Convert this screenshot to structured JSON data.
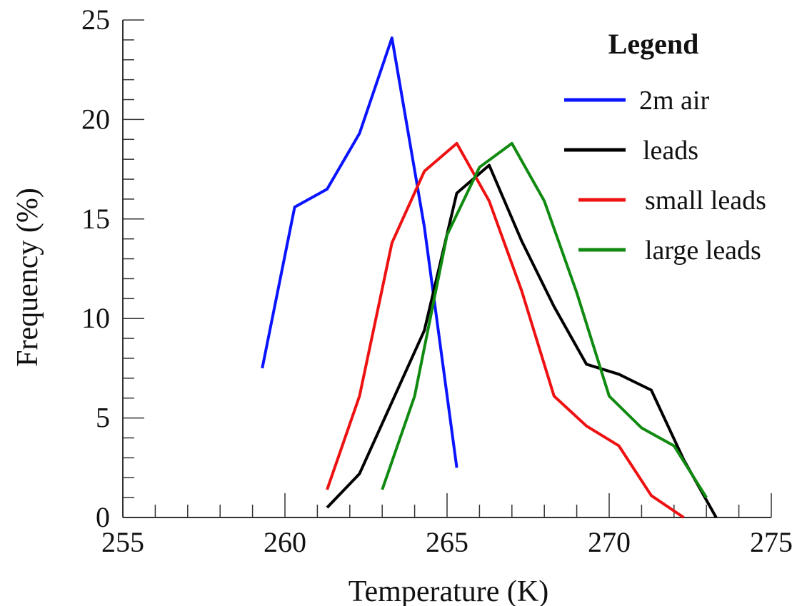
{
  "chart_data": {
    "type": "line",
    "xlabel": "Temperature (K)",
    "ylabel": "Frequency (%)",
    "xlim": [
      255,
      275
    ],
    "ylim": [
      0,
      25
    ],
    "x_major_ticks": [
      "255",
      "260",
      "265",
      "270",
      "275"
    ],
    "y_major_ticks": [
      "0",
      "5",
      "10",
      "15",
      "20",
      "25"
    ],
    "grid": false,
    "legend": {
      "title": "Legend",
      "position": "top-right"
    },
    "series": [
      {
        "name": "2m air",
        "color": "#0a14ff",
        "x": [
          259.3,
          260.3,
          261.3,
          262.3,
          263.3,
          264.3,
          265.3
        ],
        "y": [
          7.5,
          15.6,
          16.5,
          19.3,
          24.1,
          14.6,
          2.5
        ]
      },
      {
        "name": "leads",
        "color": "#000000",
        "x": [
          261.3,
          262.3,
          263.3,
          264.3,
          265.3,
          266.3,
          267.3,
          268.3,
          269.3,
          270.3,
          271.3,
          272.3,
          273.3
        ],
        "y": [
          0.5,
          2.2,
          5.8,
          9.4,
          16.3,
          17.7,
          13.9,
          10.6,
          7.7,
          7.2,
          6.4,
          2.9,
          0.0
        ]
      },
      {
        "name": "small leads",
        "color": "#ee1111",
        "x": [
          261.3,
          262.3,
          263.3,
          264.3,
          265.3,
          266.3,
          267.3,
          268.3,
          269.3,
          270.3,
          271.3,
          272.3
        ],
        "y": [
          1.4,
          6.1,
          13.8,
          17.4,
          18.8,
          15.9,
          11.4,
          6.1,
          4.6,
          3.6,
          1.1,
          0.0
        ]
      },
      {
        "name": "large leads",
        "color": "#108a10",
        "x": [
          263.0,
          264.0,
          265.0,
          266.0,
          267.0,
          268.0,
          269.0,
          270.0,
          271.0,
          272.0,
          273.0
        ],
        "y": [
          1.4,
          6.1,
          14.2,
          17.6,
          18.8,
          15.9,
          11.3,
          6.1,
          4.5,
          3.6,
          1.0
        ]
      }
    ]
  }
}
